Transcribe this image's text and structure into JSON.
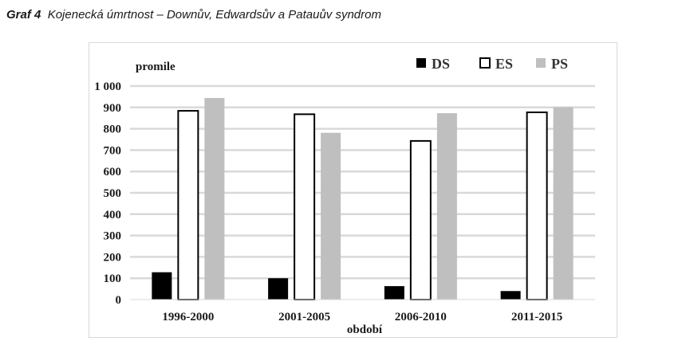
{
  "caption": {
    "label": "Graf 4",
    "text": "Kojenecká úmrtnost – Downův, Edwardsův a Patauův syndrom"
  },
  "colors": {
    "DS": "#000000",
    "ES": "#ffffff",
    "PS": "#bfbfbf",
    "grid": "#d9d9d9",
    "border": "#000000"
  },
  "chart_data": {
    "type": "bar",
    "title": "",
    "ylabel": "promile",
    "xlabel": "období",
    "categories": [
      "1996-2000",
      "2001-2005",
      "2006-2010",
      "2011-2015"
    ],
    "series": [
      {
        "name": "DS",
        "values": [
          128,
          100,
          63,
          40
        ]
      },
      {
        "name": "ES",
        "values": [
          884,
          868,
          743,
          877
        ]
      },
      {
        "name": "PS",
        "values": [
          944,
          781,
          873,
          901
        ]
      }
    ],
    "ylim": [
      0,
      1000
    ],
    "yticks": [
      0,
      100,
      200,
      300,
      400,
      500,
      600,
      700,
      800,
      900,
      1000
    ],
    "ytick_labels": [
      "0",
      "100",
      "200",
      "300",
      "400",
      "500",
      "600",
      "700",
      "800",
      "900",
      "1 000"
    ],
    "grid": true,
    "legend_position": "top-right"
  }
}
